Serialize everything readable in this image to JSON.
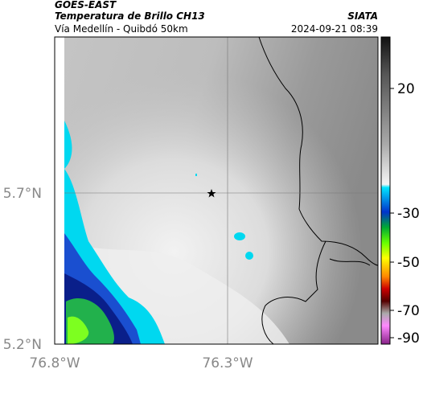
{
  "header": {
    "source": "GOES-EAST",
    "product": "Temperatura de Brillo CH13",
    "route": "Vía Medellín - Quibdó 50km",
    "agency": "SIATA",
    "timestamp": "2024-09-21 08:39"
  },
  "map": {
    "lat_labels": [
      "5.7°N",
      "5.2°N"
    ],
    "lon_labels": [
      "76.8°W",
      "76.3°W"
    ]
  },
  "colorbar": {
    "labels": [
      "20",
      "-30",
      "-50",
      "-70",
      "-90"
    ]
  }
}
